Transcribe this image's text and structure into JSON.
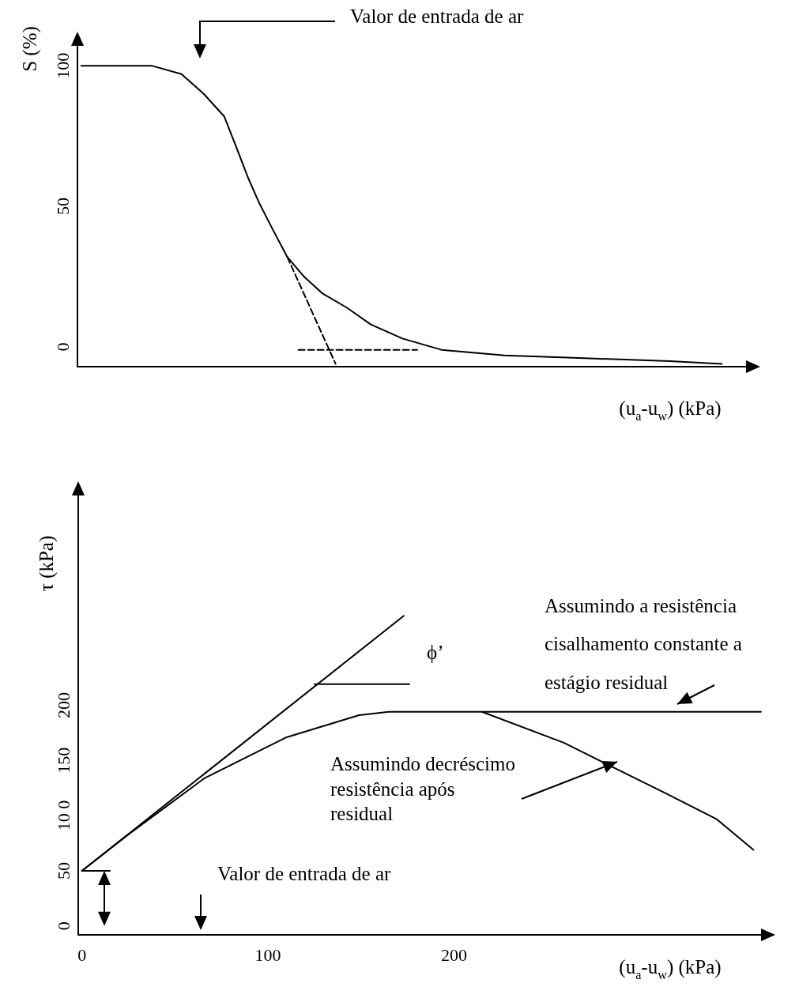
{
  "chart_data": [
    {
      "type": "line",
      "ylabel": "S (%)",
      "xlabel": "(u$_{a}$-u$_{w}$) (kPa)",
      "xlim": [
        -2,
        364
      ],
      "xticks": [
        0,
        100,
        200
      ],
      "ylim": [
        -7,
        111
      ],
      "yticks": [
        0,
        50,
        100
      ],
      "tick_labels": "y",
      "grid": false,
      "marker": "none",
      "line_style": "solid",
      "annotations": [
        "Valor de entrada de ar"
      ],
      "series": [
        {
          "color": "#000000",
          "x": [
            0,
            38,
            54,
            66,
            77,
            83,
            90,
            96,
            103,
            111,
            120,
            130,
            143,
            156,
            173,
            194,
            228,
            271,
            317,
            345
          ],
          "values": [
            100,
            100,
            97,
            90,
            82,
            72,
            60,
            51,
            42,
            32,
            25,
            19,
            14,
            8,
            3,
            -1,
            -3,
            -4,
            -5,
            -6
          ]
        },
        {
          "color": "#000000",
          "line_style": "dashed",
          "x": [
            111,
            137
          ],
          "values": [
            32,
            -6
          ]
        },
        {
          "color": "#000000",
          "line_style": "dashed",
          "x": [
            117,
            181
          ],
          "values": [
            -1,
            -1
          ]
        }
      ]
    },
    {
      "type": "line",
      "ylabel": "τ (kPa)",
      "xlabel": "(u$_{a}$-u$_{w}$) (kPa)",
      "xlim": [
        -2,
        371
      ],
      "xticks": [
        0,
        100,
        200
      ],
      "ylim": [
        -8,
        400
      ],
      "yticks": [
        0,
        50,
        {
          "value": 100,
          "label": "10 0"
        },
        150,
        200
      ],
      "grid": false,
      "marker": "none",
      "line_style": "solid",
      "annotations": [
        "Valor de entrada de ar",
        "ϕ’",
        "Assumindo a resistência\ncisalhamento constante a\nestágio residual",
        "Assumindo decréscimo\nresistência após\nresidual"
      ],
      "series": [
        {
          "color": "#000000",
          "x": [
            0,
            173
          ],
          "values": [
            50,
            281
          ]
        },
        {
          "color": "#000000",
          "x": [
            0,
            25,
            66,
            110,
            149,
            165,
            215,
            365
          ],
          "values": [
            50,
            83,
            134,
            171,
            191,
            194,
            194,
            194
          ]
        },
        {
          "color": "#000000",
          "x": [
            215,
            259,
            314,
            341,
            361
          ],
          "values": [
            194,
            166,
            120,
            97,
            69
          ]
        },
        {
          "color": "#000000",
          "x": [
            125,
            176
          ],
          "values": [
            219,
            219
          ]
        },
        {
          "color": "#000000",
          "x": [
            0,
            15
          ],
          "values": [
            50,
            50
          ]
        }
      ]
    }
  ]
}
